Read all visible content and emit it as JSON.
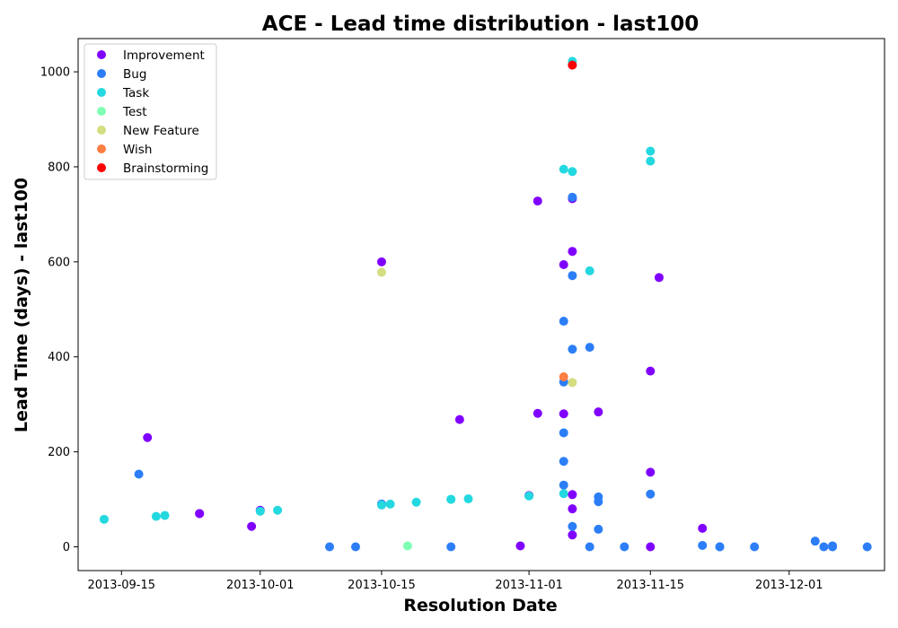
{
  "chart_data": {
    "type": "scatter",
    "title": "ACE - Lead time distribution - last100",
    "xlabel": "Resolution Date",
    "ylabel": "Lead Time (days) - last100",
    "x_type": "date",
    "xlim": [
      "2013-09-10",
      "2013-12-12"
    ],
    "ylim": [
      -50,
      1070
    ],
    "x_ticks": [
      "2013-09-15",
      "2013-10-01",
      "2013-10-15",
      "2013-11-01",
      "2013-11-15",
      "2013-12-01"
    ],
    "y_ticks": [
      0,
      200,
      400,
      600,
      800,
      1000
    ],
    "grid": false,
    "legend_position": "upper-left",
    "series": [
      {
        "name": "Improvement",
        "color": "#8000ff",
        "points": [
          {
            "x": "2013-09-18",
            "y": 230
          },
          {
            "x": "2013-09-24",
            "y": 70
          },
          {
            "x": "2013-09-24",
            "y": 70
          },
          {
            "x": "2013-09-30",
            "y": 43
          },
          {
            "x": "2013-10-01",
            "y": 77
          },
          {
            "x": "2013-10-15",
            "y": 600
          },
          {
            "x": "2013-10-15",
            "y": 90
          },
          {
            "x": "2013-10-24",
            "y": 268
          },
          {
            "x": "2013-10-31",
            "y": 2
          },
          {
            "x": "2013-11-01",
            "y": 108
          },
          {
            "x": "2013-11-02",
            "y": 728
          },
          {
            "x": "2013-11-02",
            "y": 281
          },
          {
            "x": "2013-11-05",
            "y": 594
          },
          {
            "x": "2013-11-05",
            "y": 280
          },
          {
            "x": "2013-11-06",
            "y": 622
          },
          {
            "x": "2013-11-06",
            "y": 733
          },
          {
            "x": "2013-11-06",
            "y": 110
          },
          {
            "x": "2013-11-06",
            "y": 80
          },
          {
            "x": "2013-11-06",
            "y": 25
          },
          {
            "x": "2013-11-09",
            "y": 284
          },
          {
            "x": "2013-11-15",
            "y": 370
          },
          {
            "x": "2013-11-15",
            "y": 157
          },
          {
            "x": "2013-11-15",
            "y": 0
          },
          {
            "x": "2013-11-16",
            "y": 567
          },
          {
            "x": "2013-11-21",
            "y": 39
          }
        ]
      },
      {
        "name": "Bug",
        "color": "#2c7ef7",
        "points": [
          {
            "x": "2013-09-17",
            "y": 153
          },
          {
            "x": "2013-10-09",
            "y": 0
          },
          {
            "x": "2013-10-12",
            "y": 0
          },
          {
            "x": "2013-10-15",
            "y": 90
          },
          {
            "x": "2013-10-23",
            "y": 0
          },
          {
            "x": "2013-11-05",
            "y": 475
          },
          {
            "x": "2013-11-05",
            "y": 347
          },
          {
            "x": "2013-11-05",
            "y": 240
          },
          {
            "x": "2013-11-05",
            "y": 180
          },
          {
            "x": "2013-11-05",
            "y": 130
          },
          {
            "x": "2013-11-06",
            "y": 736
          },
          {
            "x": "2013-11-06",
            "y": 571
          },
          {
            "x": "2013-11-06",
            "y": 416
          },
          {
            "x": "2013-11-06",
            "y": 43
          },
          {
            "x": "2013-11-06",
            "y": 1015
          },
          {
            "x": "2013-11-08",
            "y": 420
          },
          {
            "x": "2013-11-08",
            "y": 0
          },
          {
            "x": "2013-11-09",
            "y": 105
          },
          {
            "x": "2013-11-09",
            "y": 95
          },
          {
            "x": "2013-11-09",
            "y": 37
          },
          {
            "x": "2013-11-12",
            "y": 0
          },
          {
            "x": "2013-11-15",
            "y": 111
          },
          {
            "x": "2013-11-21",
            "y": 3
          },
          {
            "x": "2013-11-23",
            "y": 0
          },
          {
            "x": "2013-11-23",
            "y": 0
          },
          {
            "x": "2013-11-27",
            "y": 0
          },
          {
            "x": "2013-12-04",
            "y": 12
          },
          {
            "x": "2013-12-05",
            "y": 0
          },
          {
            "x": "2013-12-06",
            "y": 2
          },
          {
            "x": "2013-12-06",
            "y": 0
          },
          {
            "x": "2013-12-10",
            "y": 0
          }
        ]
      },
      {
        "name": "Task",
        "color": "#24d8e0",
        "points": [
          {
            "x": "2013-09-13",
            "y": 58
          },
          {
            "x": "2013-09-19",
            "y": 64
          },
          {
            "x": "2013-09-20",
            "y": 66
          },
          {
            "x": "2013-10-01",
            "y": 75
          },
          {
            "x": "2013-10-03",
            "y": 77
          },
          {
            "x": "2013-10-15",
            "y": 88
          },
          {
            "x": "2013-10-16",
            "y": 90
          },
          {
            "x": "2013-10-19",
            "y": 94
          },
          {
            "x": "2013-10-23",
            "y": 100
          },
          {
            "x": "2013-10-23",
            "y": 100
          },
          {
            "x": "2013-10-25",
            "y": 101
          },
          {
            "x": "2013-11-01",
            "y": 107
          },
          {
            "x": "2013-11-05",
            "y": 795
          },
          {
            "x": "2013-11-05",
            "y": 112
          },
          {
            "x": "2013-11-06",
            "y": 1022
          },
          {
            "x": "2013-11-06",
            "y": 790
          },
          {
            "x": "2013-11-08",
            "y": 581
          },
          {
            "x": "2013-11-15",
            "y": 833
          },
          {
            "x": "2013-11-15",
            "y": 812
          }
        ]
      },
      {
        "name": "Test",
        "color": "#80ffb4",
        "points": [
          {
            "x": "2013-10-18",
            "y": 2
          }
        ]
      },
      {
        "name": "New Feature",
        "color": "#d4dd80",
        "points": [
          {
            "x": "2013-10-15",
            "y": 578
          },
          {
            "x": "2013-11-06",
            "y": 346
          }
        ]
      },
      {
        "name": "Wish",
        "color": "#ff7e41",
        "points": [
          {
            "x": "2013-11-05",
            "y": 358
          }
        ]
      },
      {
        "name": "Brainstorming",
        "color": "#ff0000",
        "points": [
          {
            "x": "2013-11-06",
            "y": 1014
          }
        ]
      }
    ]
  }
}
